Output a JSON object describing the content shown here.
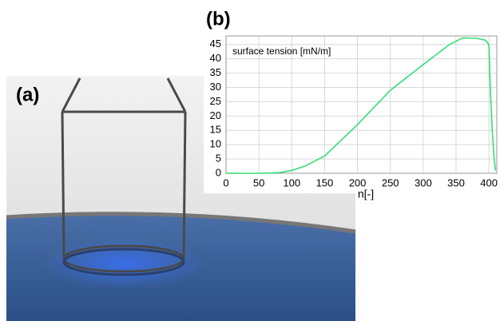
{
  "panel_labels": [
    "(a)",
    "(b)"
  ],
  "chart_data": {
    "type": "line",
    "annotation": "surface tension [mN/m]",
    "x_label": "n[-]",
    "x": [
      0,
      50,
      80,
      100,
      120,
      150,
      200,
      250,
      300,
      340,
      360,
      380,
      395,
      400,
      402,
      405,
      408,
      410
    ],
    "series": [
      {
        "name": "surface tension",
        "color": "#33dd77",
        "values": [
          0,
          0,
          0.2,
          1,
          2.5,
          6,
          17,
          29,
          38,
          45,
          47.3,
          47.2,
          46.5,
          45,
          30,
          15,
          5,
          1
        ]
      }
    ],
    "xlim": [
      0,
      412
    ],
    "ylim": [
      0,
      48
    ],
    "xticks": [
      0,
      50,
      100,
      150,
      200,
      250,
      300,
      350,
      400
    ],
    "yticks": [
      0,
      5,
      10,
      15,
      20,
      25,
      30,
      35,
      40,
      45
    ],
    "grid": true
  }
}
